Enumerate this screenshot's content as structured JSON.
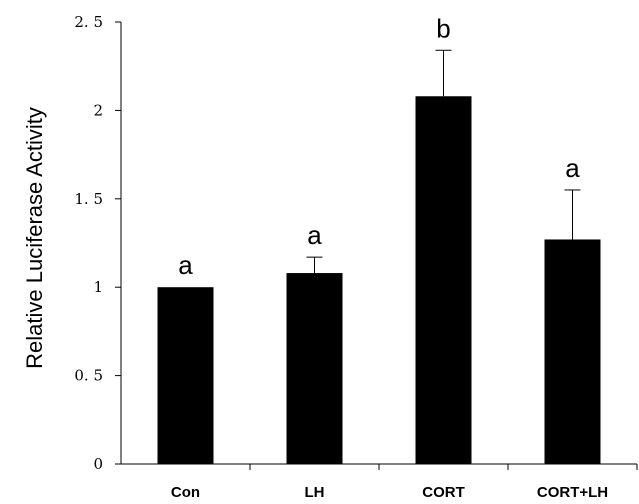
{
  "chart_data": {
    "type": "bar",
    "title": "",
    "xlabel": "",
    "ylabel": "Relative Luciferase Activity",
    "categories": [
      "Con",
      "LH",
      "CORT",
      "CORT+LH"
    ],
    "values": [
      1.0,
      1.08,
      2.08,
      1.27
    ],
    "error": [
      0,
      0.09,
      0.26,
      0.28
    ],
    "significance": [
      "a",
      "a",
      "b",
      "a"
    ],
    "ylim": [
      0,
      2.5
    ],
    "yticks": [
      0,
      0.5,
      1,
      1.5,
      2,
      2.5
    ],
    "ytick_labels": [
      "0",
      "0. 5",
      "1",
      "1. 5",
      "2",
      "2. 5"
    ],
    "grid": false,
    "bar_color": "#000000"
  }
}
